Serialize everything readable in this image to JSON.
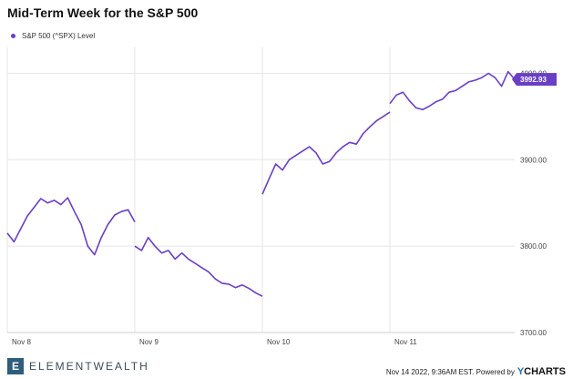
{
  "title": "Mid-Term Week for the S&P 500",
  "legend_label": "S&P 500 (^SPX) Level",
  "last_value_label": "3992.93",
  "footer": {
    "brand": "ELEMENTWEALTH",
    "logo_letter": "E",
    "timestamp_text": "Nov 14 2022, 9:36AM EST. Powered by",
    "powered_brand_y": "Y",
    "powered_brand_rest": "CHARTS"
  },
  "colors": {
    "series": "#6a3fc6",
    "grid": "#e6e6e6",
    "axis_text": "#444444"
  },
  "chart_data": {
    "type": "line",
    "title": "Mid-Term Week for the S&P 500",
    "xlabel": "",
    "ylabel": "",
    "x_tick_labels": [
      "Nov 8",
      "Nov 9",
      "Nov 10",
      "Nov 11"
    ],
    "y_ticks": [
      3700,
      3800,
      3900,
      4000
    ],
    "y_tick_labels": [
      "3700.00",
      "3800.00",
      "3900.00",
      "4000.00"
    ],
    "ylim": [
      3700,
      4030
    ],
    "grid": true,
    "legend_position": "top-left",
    "series": [
      {
        "name": "S&P 500 (^SPX) Level",
        "days": [
          {
            "day": "Nov 8",
            "values": [
              3815,
              3805,
              3820,
              3835,
              3845,
              3855,
              3850,
              3853,
              3848,
              3856,
              3840,
              3825,
              3800,
              3790,
              3810,
              3825,
              3836,
              3840,
              3842,
              3828
            ]
          },
          {
            "day": "Nov 9",
            "values": [
              3800,
              3795,
              3810,
              3800,
              3792,
              3795,
              3785,
              3792,
              3785,
              3780,
              3775,
              3770,
              3762,
              3757,
              3756,
              3752,
              3755,
              3751,
              3746,
              3742
            ]
          },
          {
            "day": "Nov 10",
            "values": [
              3860,
              3878,
              3895,
              3888,
              3900,
              3905,
              3910,
              3915,
              3908,
              3895,
              3898,
              3908,
              3915,
              3920,
              3918,
              3930,
              3938,
              3945,
              3950,
              3955
            ]
          },
          {
            "day": "Nov 11",
            "values": [
              3965,
              3975,
              3978,
              3968,
              3960,
              3958,
              3962,
              3967,
              3970,
              3978,
              3980,
              3985,
              3990,
              3992,
              3995,
              4000,
              3995,
              3985,
              4002,
              3993
            ]
          }
        ]
      }
    ]
  }
}
